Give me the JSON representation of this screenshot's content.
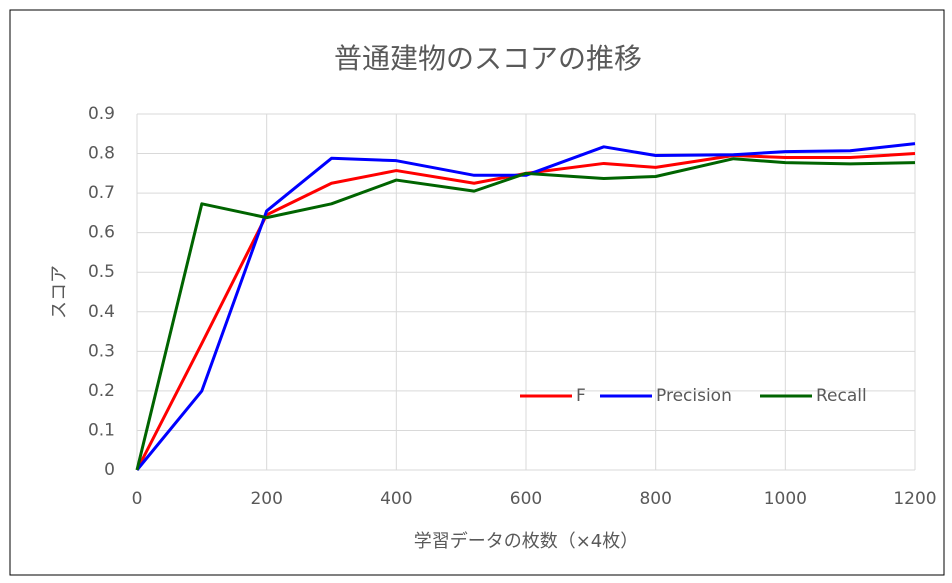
{
  "chart_data": {
    "type": "line",
    "title": "普通建物のスコアの推移",
    "x_label": "学習データの枚数（×4枚）",
    "y_label": "スコア",
    "x": [
      0,
      100,
      200,
      300,
      400,
      520,
      600,
      720,
      800,
      920,
      1000,
      1100,
      1200
    ],
    "series": [
      {
        "name": "F",
        "color": "#ff0000",
        "values": [
          0,
          0.32,
          0.645,
          0.725,
          0.757,
          0.725,
          0.75,
          0.775,
          0.765,
          0.795,
          0.79,
          0.79,
          0.8
        ]
      },
      {
        "name": "Precision",
        "color": "#0000ff",
        "values": [
          0,
          0.2,
          0.655,
          0.788,
          0.782,
          0.745,
          0.745,
          0.817,
          0.795,
          0.797,
          0.805,
          0.807,
          0.825
        ]
      },
      {
        "name": "Recall",
        "color": "#006400",
        "values": [
          0,
          0.673,
          0.638,
          0.673,
          0.733,
          0.705,
          0.75,
          0.737,
          0.742,
          0.787,
          0.777,
          0.774,
          0.777
        ]
      }
    ],
    "xlim": [
      0,
      1200
    ],
    "xticks": [
      0,
      200,
      400,
      600,
      800,
      1000,
      1200
    ],
    "ylim": [
      0,
      0.9
    ],
    "yticks": [
      0,
      0.1,
      0.2,
      0.3,
      0.4,
      0.5,
      0.6,
      0.7,
      0.8,
      0.9
    ],
    "grid": true,
    "legend": "lower right"
  }
}
